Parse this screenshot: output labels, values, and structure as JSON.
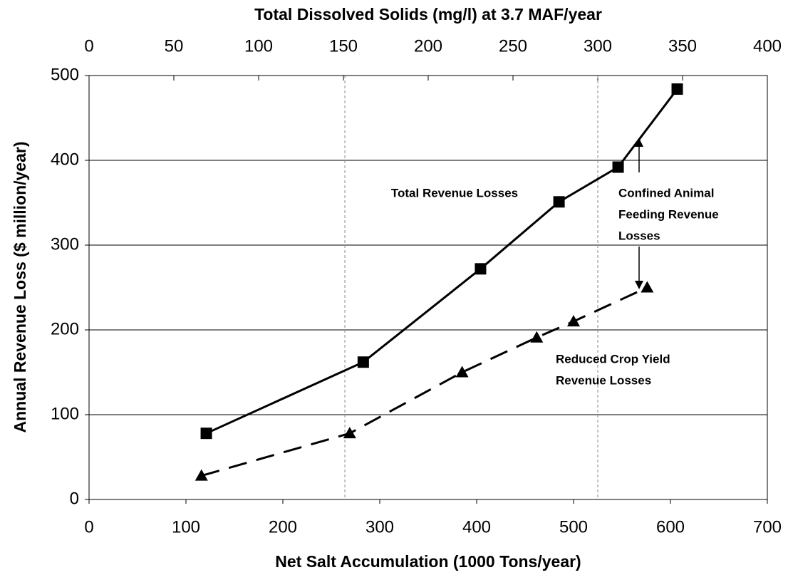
{
  "chart_data": {
    "type": "line",
    "title": "Total Dissolved Solids (mg/l) at 3.7 MAF/year",
    "x_label": "Net Salt Accumulation (1000 Tons/year)",
    "y_label": "Annual Revenue Loss ($ million/year)",
    "xlim": [
      0,
      700
    ],
    "xticks": [
      0,
      100,
      200,
      300,
      400,
      500,
      600,
      700
    ],
    "x2lim": [
      0,
      400
    ],
    "x2ticks": [
      0,
      50,
      100,
      150,
      200,
      250,
      300,
      350,
      400
    ],
    "ylim": [
      0,
      500
    ],
    "yticks": [
      0,
      100,
      200,
      300,
      400,
      500
    ],
    "grid": true,
    "reference_lines_x": [
      264,
      525
    ],
    "series": [
      {
        "color": "#000000",
        "style": "solid",
        "marker": "square",
        "x": [
          121,
          283,
          404,
          485,
          546,
          607
        ],
        "values": [
          78,
          162,
          272,
          351,
          392,
          484
        ]
      },
      {
        "color": "#000000",
        "style": "dashed",
        "marker": "triangle",
        "x": [
          116,
          269,
          385,
          462,
          500,
          576
        ],
        "values": [
          28,
          78,
          150,
          191,
          210,
          250
        ]
      }
    ],
    "annotations": [
      {
        "lines": [
          "Total Revenue Losses"
        ]
      },
      {
        "lines": [
          "Confined Animal",
          "Feeding Revenue",
          "Losses"
        ]
      },
      {
        "lines": [
          "Reduced Crop Yield",
          "Revenue Losses"
        ]
      }
    ]
  }
}
